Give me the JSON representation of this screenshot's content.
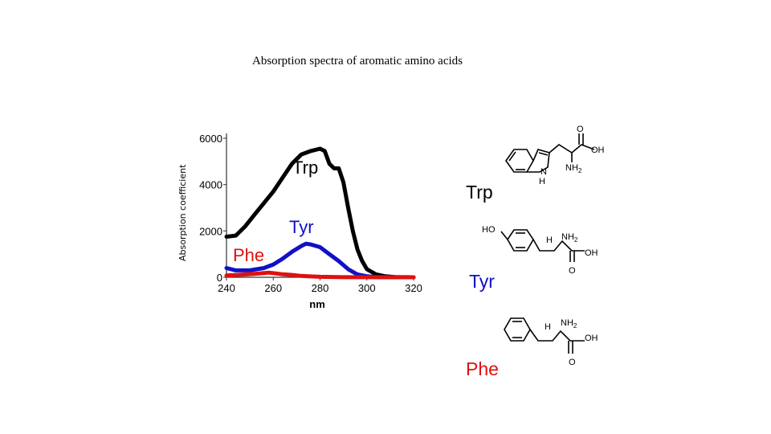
{
  "slide_title": "Absorption spectra of aromatic amino acids",
  "colors": {
    "trp": "#000000",
    "tyr": "#1010c8",
    "phe": "#e01010"
  },
  "chart_data": {
    "type": "line",
    "title": "",
    "xlabel": "nm",
    "ylabel": "Absorption coefficient",
    "xlim": [
      240,
      320
    ],
    "ylim": [
      0,
      6000
    ],
    "x_ticks": [
      "240",
      "260",
      "280",
      "300",
      "320"
    ],
    "y_ticks": [
      "0",
      "2000",
      "4000",
      "6000"
    ],
    "grid": false,
    "series": [
      {
        "name": "Trp",
        "color": "#000000",
        "points": [
          [
            240,
            1750
          ],
          [
            244,
            1800
          ],
          [
            248,
            2200
          ],
          [
            252,
            2700
          ],
          [
            256,
            3200
          ],
          [
            260,
            3700
          ],
          [
            264,
            4300
          ],
          [
            268,
            4900
          ],
          [
            272,
            5300
          ],
          [
            276,
            5450
          ],
          [
            280,
            5550
          ],
          [
            282,
            5450
          ],
          [
            284,
            4900
          ],
          [
            286,
            4700
          ],
          [
            288,
            4700
          ],
          [
            290,
            4100
          ],
          [
            292,
            3000
          ],
          [
            294,
            2000
          ],
          [
            296,
            1200
          ],
          [
            298,
            700
          ],
          [
            300,
            350
          ],
          [
            304,
            120
          ],
          [
            308,
            40
          ],
          [
            312,
            10
          ],
          [
            320,
            0
          ]
        ]
      },
      {
        "name": "Tyr",
        "color": "#1010c8",
        "points": [
          [
            240,
            400
          ],
          [
            244,
            300
          ],
          [
            250,
            300
          ],
          [
            256,
            400
          ],
          [
            260,
            550
          ],
          [
            264,
            800
          ],
          [
            268,
            1100
          ],
          [
            272,
            1350
          ],
          [
            274,
            1450
          ],
          [
            276,
            1420
          ],
          [
            280,
            1300
          ],
          [
            284,
            1000
          ],
          [
            288,
            700
          ],
          [
            292,
            350
          ],
          [
            296,
            120
          ],
          [
            300,
            40
          ],
          [
            304,
            10
          ],
          [
            320,
            0
          ]
        ]
      },
      {
        "name": "Phe",
        "color": "#e01010",
        "points": [
          [
            240,
            80
          ],
          [
            244,
            100
          ],
          [
            248,
            120
          ],
          [
            252,
            150
          ],
          [
            256,
            180
          ],
          [
            258,
            200
          ],
          [
            260,
            180
          ],
          [
            264,
            130
          ],
          [
            268,
            100
          ],
          [
            272,
            60
          ],
          [
            280,
            20
          ],
          [
            290,
            5
          ],
          [
            320,
            0
          ]
        ]
      }
    ]
  },
  "molecules": [
    {
      "label": "Trp",
      "color": "#000000"
    },
    {
      "label": "Tyr",
      "color": "#1010c8"
    },
    {
      "label": "Phe",
      "color": "#e01010"
    }
  ],
  "structure_text": {
    "trp": {
      "o": "O",
      "oh": "OH",
      "nh2": "NH",
      "nh2_sub": "2",
      "n": "N",
      "h": "H"
    },
    "tyr": {
      "ho": "HO",
      "h": "H",
      "nh2": "NH",
      "nh2_sub": "2",
      "oh": "OH",
      "o": "O"
    },
    "phe": {
      "h": "H",
      "nh2": "NH",
      "nh2_sub": "2",
      "oh": "OH",
      "o": "O"
    }
  }
}
